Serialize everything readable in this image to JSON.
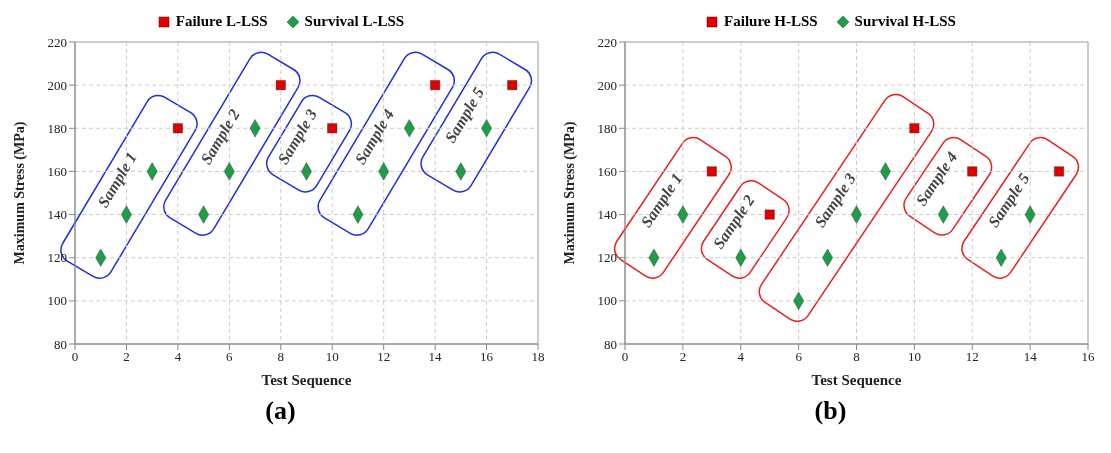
{
  "chart_data": [
    {
      "type": "scatter",
      "title": "(a)",
      "xlabel": "Test Sequence",
      "ylabel": "Maximum Stress (MPa)",
      "xlim": [
        0,
        18
      ],
      "xticks": [
        0,
        2,
        4,
        6,
        8,
        10,
        12,
        14,
        16,
        18
      ],
      "ylim": [
        80,
        220
      ],
      "yticks": [
        80,
        100,
        120,
        140,
        160,
        180,
        200,
        220
      ],
      "grid": true,
      "legend": "top",
      "series": [
        {
          "name": "Failure L-LSS",
          "color": "#e00000",
          "marker": "square",
          "x": [
            4,
            8,
            10,
            14,
            17
          ],
          "values": [
            180,
            200,
            180,
            200,
            200
          ]
        },
        {
          "name": "Survival L-LSS",
          "color": "#1e9e48",
          "marker": "diamond",
          "x": [
            1,
            2,
            3,
            5,
            6,
            7,
            9,
            11,
            12,
            13,
            15,
            16
          ],
          "values": [
            120,
            140,
            160,
            140,
            160,
            180,
            160,
            140,
            160,
            180,
            160,
            180
          ]
        }
      ],
      "annotations": [
        "Sample 1",
        "Sample 2",
        "Sample 3",
        "Sample 4",
        "Sample 5"
      ]
    },
    {
      "type": "scatter",
      "title": "(b)",
      "xlabel": "Test Sequence",
      "ylabel": "Maximum Stress (MPa)",
      "xlim": [
        0,
        16
      ],
      "xticks": [
        0,
        2,
        4,
        6,
        8,
        10,
        12,
        14,
        16
      ],
      "ylim": [
        80,
        220
      ],
      "yticks": [
        80,
        100,
        120,
        140,
        160,
        180,
        200,
        220
      ],
      "grid": true,
      "legend": "top",
      "series": [
        {
          "name": "Failure H-LSS",
          "color": "#e00000",
          "marker": "square",
          "x": [
            3,
            5,
            10,
            12,
            15
          ],
          "values": [
            160,
            140,
            180,
            160,
            160
          ]
        },
        {
          "name": "Survival H-LSS",
          "color": "#1e9e48",
          "marker": "diamond",
          "x": [
            1,
            2,
            4,
            6,
            7,
            8,
            9,
            11,
            13,
            14
          ],
          "values": [
            120,
            140,
            120,
            100,
            120,
            140,
            160,
            140,
            120,
            140
          ]
        }
      ],
      "annotations": [
        "Sample 1",
        "Sample 2",
        "Sample 3",
        "Sample 4",
        "Sample 5"
      ]
    }
  ]
}
